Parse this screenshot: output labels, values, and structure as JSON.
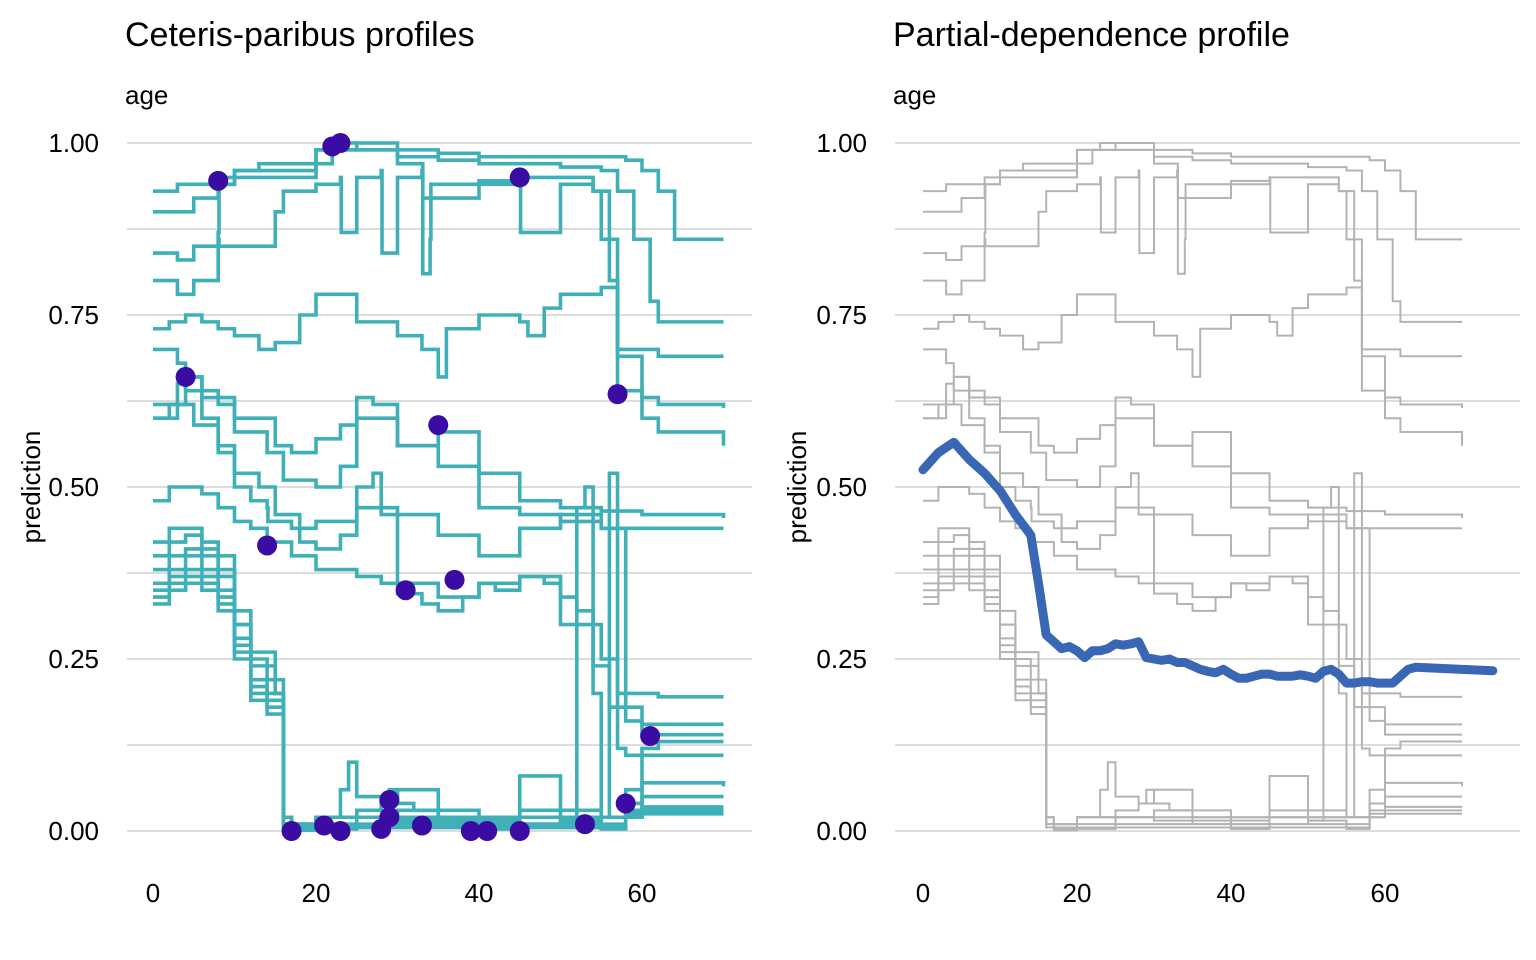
{
  "chart_data": [
    {
      "type": "line",
      "title": "Ceteris-paribus profiles",
      "subtitle": "age",
      "xlabel": "",
      "ylabel": "prediction",
      "xlim": [
        0,
        74
      ],
      "ylim": [
        -0.03,
        1.03
      ],
      "xticks": [
        "0",
        "20",
        "40",
        "60"
      ],
      "yticks": [
        "0.00",
        "0.25",
        "0.50",
        "0.75",
        "1.00"
      ],
      "grid": true,
      "legend": "none",
      "colors": {
        "profile": "#3fb0b7",
        "observation": "#3a0ca3"
      },
      "profiles": [
        {
          "x": [
            0,
            3,
            8,
            10,
            20,
            25,
            30,
            35,
            40,
            45,
            50,
            55,
            58,
            60,
            62,
            64,
            70
          ],
          "y": [
            0.93,
            0.94,
            0.95,
            0.96,
            0.99,
            1.0,
            0.99,
            0.985,
            0.98,
            0.98,
            0.98,
            0.98,
            0.975,
            0.96,
            0.93,
            0.86,
            0.86
          ]
        },
        {
          "x": [
            0,
            5,
            8,
            10,
            13,
            20,
            23,
            25,
            30,
            35,
            40,
            45,
            50,
            55,
            57,
            59,
            61,
            62,
            70
          ],
          "y": [
            0.9,
            0.92,
            0.94,
            0.96,
            0.97,
            0.99,
            1.0,
            0.99,
            0.98,
            0.975,
            0.97,
            0.97,
            0.965,
            0.96,
            0.93,
            0.86,
            0.77,
            0.74,
            0.74
          ]
        },
        {
          "x": [
            0,
            3,
            5,
            8,
            8.1,
            10,
            20,
            22,
            25,
            30,
            33,
            33.1,
            40,
            45,
            50,
            54,
            55,
            57,
            62,
            70
          ],
          "y": [
            0.84,
            0.83,
            0.85,
            0.87,
            0.94,
            0.95,
            0.97,
            0.99,
            0.99,
            0.97,
            0.97,
            0.92,
            0.945,
            0.95,
            0.95,
            0.93,
            0.86,
            0.7,
            0.69,
            0.69
          ]
        },
        {
          "x": [
            0,
            3,
            5,
            8,
            8.1,
            15,
            16,
            20,
            23,
            23.1,
            25,
            28,
            28.1,
            30,
            33,
            33.1,
            34,
            34.1,
            40,
            45,
            45.1,
            50,
            54,
            56,
            57,
            60,
            62,
            70
          ],
          "y": [
            0.8,
            0.78,
            0.8,
            0.86,
            0.85,
            0.9,
            0.93,
            0.94,
            0.95,
            0.87,
            0.95,
            0.96,
            0.84,
            0.95,
            0.96,
            0.81,
            0.86,
            0.94,
            0.94,
            0.95,
            0.87,
            0.94,
            0.93,
            0.8,
            0.64,
            0.63,
            0.62,
            0.615
          ]
        },
        {
          "x": [
            0,
            2,
            4,
            6,
            8,
            10,
            13,
            15,
            18,
            20,
            25,
            30,
            33,
            35,
            36,
            40,
            45,
            46,
            48,
            50,
            55,
            57,
            60,
            62,
            70
          ],
          "y": [
            0.73,
            0.74,
            0.75,
            0.74,
            0.73,
            0.72,
            0.7,
            0.71,
            0.75,
            0.78,
            0.74,
            0.72,
            0.7,
            0.66,
            0.73,
            0.75,
            0.74,
            0.72,
            0.76,
            0.78,
            0.79,
            0.69,
            0.6,
            0.58,
            0.56
          ]
        },
        {
          "x": [
            0,
            3,
            4,
            6,
            10,
            15,
            17,
            20,
            23,
            25,
            30,
            35,
            40,
            45,
            50,
            55,
            60,
            70
          ],
          "y": [
            0.7,
            0.68,
            0.66,
            0.63,
            0.6,
            0.56,
            0.55,
            0.57,
            0.59,
            0.6,
            0.56,
            0.58,
            0.52,
            0.48,
            0.47,
            0.465,
            0.46,
            0.455
          ]
        },
        {
          "x": [
            0,
            2,
            4,
            6,
            8,
            10,
            14,
            16,
            20,
            23,
            25,
            27,
            30,
            35,
            40,
            45,
            50,
            55,
            60,
            70
          ],
          "y": [
            0.6,
            0.62,
            0.66,
            0.64,
            0.62,
            0.58,
            0.55,
            0.51,
            0.5,
            0.53,
            0.63,
            0.62,
            0.56,
            0.53,
            0.47,
            0.46,
            0.45,
            0.44,
            0.44,
            0.44
          ]
        },
        {
          "x": [
            0,
            3,
            5,
            8,
            10,
            13,
            15,
            18,
            20,
            23,
            25,
            27,
            28,
            30,
            35,
            40,
            45,
            50,
            55,
            57,
            60,
            62,
            70
          ],
          "y": [
            0.6,
            0.62,
            0.59,
            0.55,
            0.52,
            0.5,
            0.46,
            0.42,
            0.41,
            0.43,
            0.5,
            0.52,
            0.46,
            0.36,
            0.34,
            0.36,
            0.37,
            0.3,
            0.25,
            0.2,
            0.2,
            0.195,
            0.195
          ]
        },
        {
          "x": [
            0,
            2,
            4,
            6,
            8,
            10,
            12,
            14,
            17,
            20,
            25,
            28,
            30,
            33,
            35,
            38,
            40,
            42,
            45,
            48,
            50,
            52,
            54,
            56,
            58,
            60,
            62,
            70
          ],
          "y": [
            0.48,
            0.5,
            0.5,
            0.49,
            0.47,
            0.45,
            0.44,
            0.42,
            0.4,
            0.38,
            0.37,
            0.36,
            0.345,
            0.33,
            0.32,
            0.34,
            0.36,
            0.35,
            0.37,
            0.36,
            0.34,
            0.32,
            0.24,
            0.18,
            0.16,
            0.155,
            0.155,
            0.155
          ]
        },
        {
          "x": [
            0,
            3,
            4,
            6,
            8,
            10,
            12,
            14,
            14.1,
            17,
            20,
            25,
            30,
            35,
            40,
            45,
            50,
            55,
            58,
            60,
            70
          ],
          "y": [
            0.62,
            0.65,
            0.64,
            0.6,
            0.56,
            0.5,
            0.48,
            0.47,
            0.45,
            0.44,
            0.45,
            0.47,
            0.46,
            0.43,
            0.4,
            0.44,
            0.46,
            0.44,
            0.18,
            0.14,
            0.14
          ]
        },
        {
          "x": [
            0,
            2,
            4,
            6,
            8,
            10,
            12,
            14,
            15,
            16,
            17,
            17.1,
            20,
            25,
            30,
            35,
            40,
            45,
            50,
            52,
            53,
            54,
            55,
            58,
            60,
            62,
            70
          ],
          "y": [
            0.42,
            0.44,
            0.44,
            0.42,
            0.4,
            0.32,
            0.26,
            0.26,
            0.2,
            0.02,
            0.01,
            0.01,
            0.02,
            0.02,
            0.015,
            0.01,
            0.01,
            0.01,
            0.015,
            0.47,
            0.5,
            0.2,
            0.02,
            0.02,
            0.12,
            0.13,
            0.13
          ]
        },
        {
          "x": [
            0,
            2,
            4,
            6,
            8,
            10,
            12,
            14,
            15,
            16,
            17,
            20,
            25,
            30,
            35,
            40,
            45,
            50,
            55,
            56,
            57,
            58,
            60,
            70
          ],
          "y": [
            0.4,
            0.42,
            0.43,
            0.41,
            0.38,
            0.3,
            0.25,
            0.24,
            0.2,
            0.02,
            0.01,
            0.02,
            0.02,
            0.03,
            0.02,
            0.015,
            0.02,
            0.02,
            0.02,
            0.52,
            0.12,
            0.11,
            0.11,
            0.11
          ]
        },
        {
          "x": [
            0,
            2,
            4,
            6,
            8,
            10,
            12,
            14,
            16,
            17,
            20,
            25,
            28,
            29,
            30,
            32,
            35,
            40,
            45,
            50,
            55,
            58,
            60,
            70
          ],
          "y": [
            0.38,
            0.4,
            0.41,
            0.4,
            0.37,
            0.3,
            0.24,
            0.22,
            0.02,
            0.01,
            0.02,
            0.03,
            0.04,
            0.06,
            0.04,
            0.03,
            0.02,
            0.02,
            0.03,
            0.02,
            0.02,
            0.06,
            0.07,
            0.065
          ]
        },
        {
          "x": [
            0,
            2,
            4,
            6,
            8,
            10,
            12,
            14,
            16,
            17,
            20,
            23,
            24,
            25,
            28,
            30,
            35,
            40,
            45,
            50,
            55,
            58,
            60,
            70
          ],
          "y": [
            0.36,
            0.38,
            0.4,
            0.38,
            0.35,
            0.28,
            0.22,
            0.2,
            0.02,
            0.01,
            0.02,
            0.06,
            0.1,
            0.05,
            0.04,
            0.06,
            0.03,
            0.02,
            0.08,
            0.03,
            0.02,
            0.04,
            0.05,
            0.05
          ]
        },
        {
          "x": [
            0,
            2,
            4,
            6,
            8,
            10,
            12,
            14,
            16,
            17,
            20,
            25,
            30,
            35,
            40,
            45,
            50,
            55,
            58,
            60,
            70
          ],
          "y": [
            0.35,
            0.37,
            0.38,
            0.37,
            0.34,
            0.27,
            0.21,
            0.19,
            0.01,
            0.005,
            0.01,
            0.02,
            0.02,
            0.015,
            0.01,
            0.02,
            0.015,
            0.01,
            0.03,
            0.035,
            0.035
          ]
        },
        {
          "x": [
            0,
            2,
            4,
            6,
            8,
            10,
            12,
            14,
            16,
            17,
            20,
            25,
            30,
            35,
            40,
            45,
            50,
            55,
            58,
            60,
            70
          ],
          "y": [
            0.34,
            0.36,
            0.37,
            0.36,
            0.33,
            0.26,
            0.2,
            0.18,
            0.01,
            0.003,
            0.005,
            0.01,
            0.01,
            0.01,
            0.005,
            0.01,
            0.01,
            0.005,
            0.025,
            0.03,
            0.03
          ]
        },
        {
          "x": [
            0,
            2,
            4,
            6,
            8,
            10,
            12,
            14,
            16,
            17,
            20,
            25,
            30,
            35,
            40,
            45,
            50,
            55,
            58,
            60,
            70
          ],
          "y": [
            0.33,
            0.35,
            0.36,
            0.35,
            0.32,
            0.25,
            0.19,
            0.17,
            0.005,
            0.001,
            0.003,
            0.005,
            0.005,
            0.005,
            0.003,
            0.005,
            0.005,
            0.003,
            0.02,
            0.025,
            0.025
          ]
        }
      ],
      "observations": [
        {
          "x": 4,
          "y": 0.66
        },
        {
          "x": 8,
          "y": 0.945
        },
        {
          "x": 14,
          "y": 0.415
        },
        {
          "x": 17,
          "y": 0.0
        },
        {
          "x": 21,
          "y": 0.008
        },
        {
          "x": 22,
          "y": 0.995
        },
        {
          "x": 23,
          "y": 1.0
        },
        {
          "x": 23,
          "y": 0.0
        },
        {
          "x": 28,
          "y": 0.003
        },
        {
          "x": 29,
          "y": 0.045
        },
        {
          "x": 29,
          "y": 0.02
        },
        {
          "x": 31,
          "y": 0.35
        },
        {
          "x": 33,
          "y": 0.008
        },
        {
          "x": 35,
          "y": 0.59
        },
        {
          "x": 37,
          "y": 0.365
        },
        {
          "x": 39,
          "y": 0.0
        },
        {
          "x": 41,
          "y": 0.0
        },
        {
          "x": 45,
          "y": 0.95
        },
        {
          "x": 45,
          "y": 0.0
        },
        {
          "x": 53,
          "y": 0.01
        },
        {
          "x": 57,
          "y": 0.635
        },
        {
          "x": 58,
          "y": 0.04
        },
        {
          "x": 61,
          "y": 0.138
        }
      ]
    },
    {
      "type": "line",
      "title": "Partial-dependence profile",
      "subtitle": "age",
      "xlabel": "",
      "ylabel": "prediction",
      "xlim": [
        0,
        74
      ],
      "ylim": [
        -0.03,
        1.03
      ],
      "xticks": [
        "0",
        "20",
        "40",
        "60"
      ],
      "yticks": [
        "0.00",
        "0.25",
        "0.50",
        "0.75",
        "1.00"
      ],
      "grid": true,
      "legend": "none",
      "colors": {
        "profile": "#b3b3b3",
        "aggregate": "#3a67b5"
      },
      "aggregate": {
        "x": [
          0,
          2,
          4,
          6,
          8,
          10,
          12,
          13,
          14,
          15,
          16,
          17,
          18,
          19,
          20,
          21,
          22,
          23,
          24,
          25,
          26,
          27,
          28,
          29,
          30,
          31,
          32,
          33,
          34,
          35,
          36,
          37,
          38,
          39,
          40,
          41,
          42,
          43,
          44,
          45,
          46,
          47,
          48,
          49,
          50,
          51,
          52,
          53,
          54,
          55,
          56,
          57,
          58,
          59,
          60,
          61,
          62,
          63,
          64,
          70,
          74
        ],
        "y": [
          0.525,
          0.55,
          0.565,
          0.54,
          0.52,
          0.495,
          0.46,
          0.445,
          0.43,
          0.36,
          0.285,
          0.275,
          0.265,
          0.268,
          0.262,
          0.252,
          0.262,
          0.262,
          0.265,
          0.272,
          0.27,
          0.272,
          0.275,
          0.252,
          0.25,
          0.248,
          0.25,
          0.245,
          0.245,
          0.24,
          0.235,
          0.232,
          0.23,
          0.235,
          0.228,
          0.222,
          0.222,
          0.225,
          0.228,
          0.228,
          0.225,
          0.225,
          0.225,
          0.227,
          0.225,
          0.222,
          0.232,
          0.235,
          0.228,
          0.215,
          0.215,
          0.217,
          0.217,
          0.215,
          0.215,
          0.215,
          0.225,
          0.235,
          0.238,
          0.235,
          0.233
        ]
      }
    }
  ]
}
